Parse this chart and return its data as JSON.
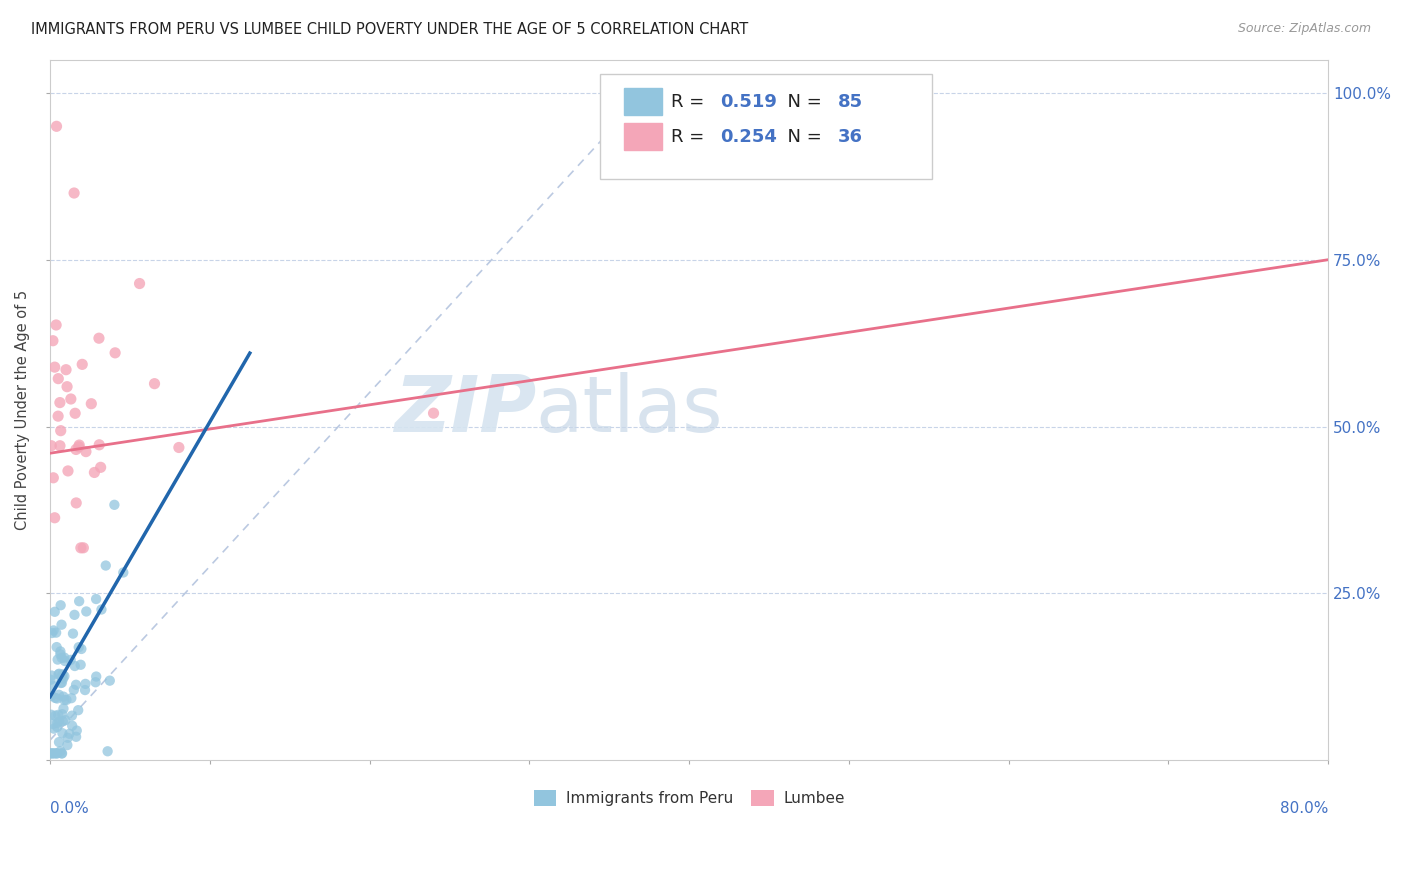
{
  "title": "IMMIGRANTS FROM PERU VS LUMBEE CHILD POVERTY UNDER THE AGE OF 5 CORRELATION CHART",
  "source": "Source: ZipAtlas.com",
  "ylabel": "Child Poverty Under the Age of 5",
  "legend_1_r": "0.519",
  "legend_1_n": "85",
  "legend_2_r": "0.254",
  "legend_2_n": "36",
  "legend_label_1": "Immigrants from Peru",
  "legend_label_2": "Lumbee",
  "blue_color": "#92C5DE",
  "pink_color": "#F4A6B8",
  "blue_line_color": "#2166AC",
  "pink_line_color": "#E8708A",
  "dashed_line_color": "#AABCDA",
  "xmin": 0.0,
  "xmax": 0.8,
  "ymin": 0.0,
  "ymax": 1.05,
  "yticks": [
    0.0,
    0.25,
    0.5,
    0.75,
    1.0
  ],
  "right_tick_labels": [
    "25.0%",
    "50.0%",
    "75.0%",
    "100.0%"
  ],
  "watermark_color": "#D6E4F0"
}
